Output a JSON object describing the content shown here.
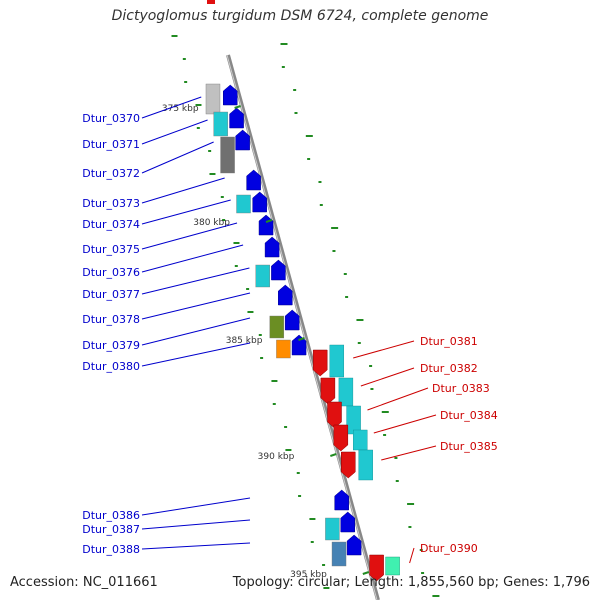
{
  "title": "Dictyoglomus turgidum DSM 6724, complete genome",
  "footer": {
    "accession_prefix": "Accession:",
    "accession": "NC_011661",
    "topology_prefix": "Topology:",
    "topology": "circular",
    "length_prefix": "Length:",
    "length": "1,855,560 bp",
    "genes_prefix": "Genes:",
    "genes": "1,796"
  },
  "colors": {
    "forward_genes": "#0000e0",
    "reverse_genes": "#e01010",
    "label_forward": "#0000cc",
    "label_reverse": "#cc0000",
    "cog_cyan": "#20c8d0",
    "backbone": "#888888",
    "gc_ticks": "#228b22"
  },
  "ticks": [
    "375 kbp",
    "380 kbp",
    "385 kbp",
    "390 kbp",
    "395 kbp"
  ],
  "forward_labels": [
    "Dtur_0370",
    "Dtur_0371",
    "Dtur_0372",
    "Dtur_0373",
    "Dtur_0374",
    "Dtur_0375",
    "Dtur_0376",
    "Dtur_0377",
    "Dtur_0378",
    "Dtur_0379",
    "Dtur_0380",
    "Dtur_0386",
    "Dtur_0387",
    "Dtur_0388"
  ],
  "reverse_labels": [
    "Dtur_0381",
    "Dtur_0382",
    "Dtur_0383",
    "Dtur_0384",
    "Dtur_0385",
    "Dtur_0390"
  ]
}
